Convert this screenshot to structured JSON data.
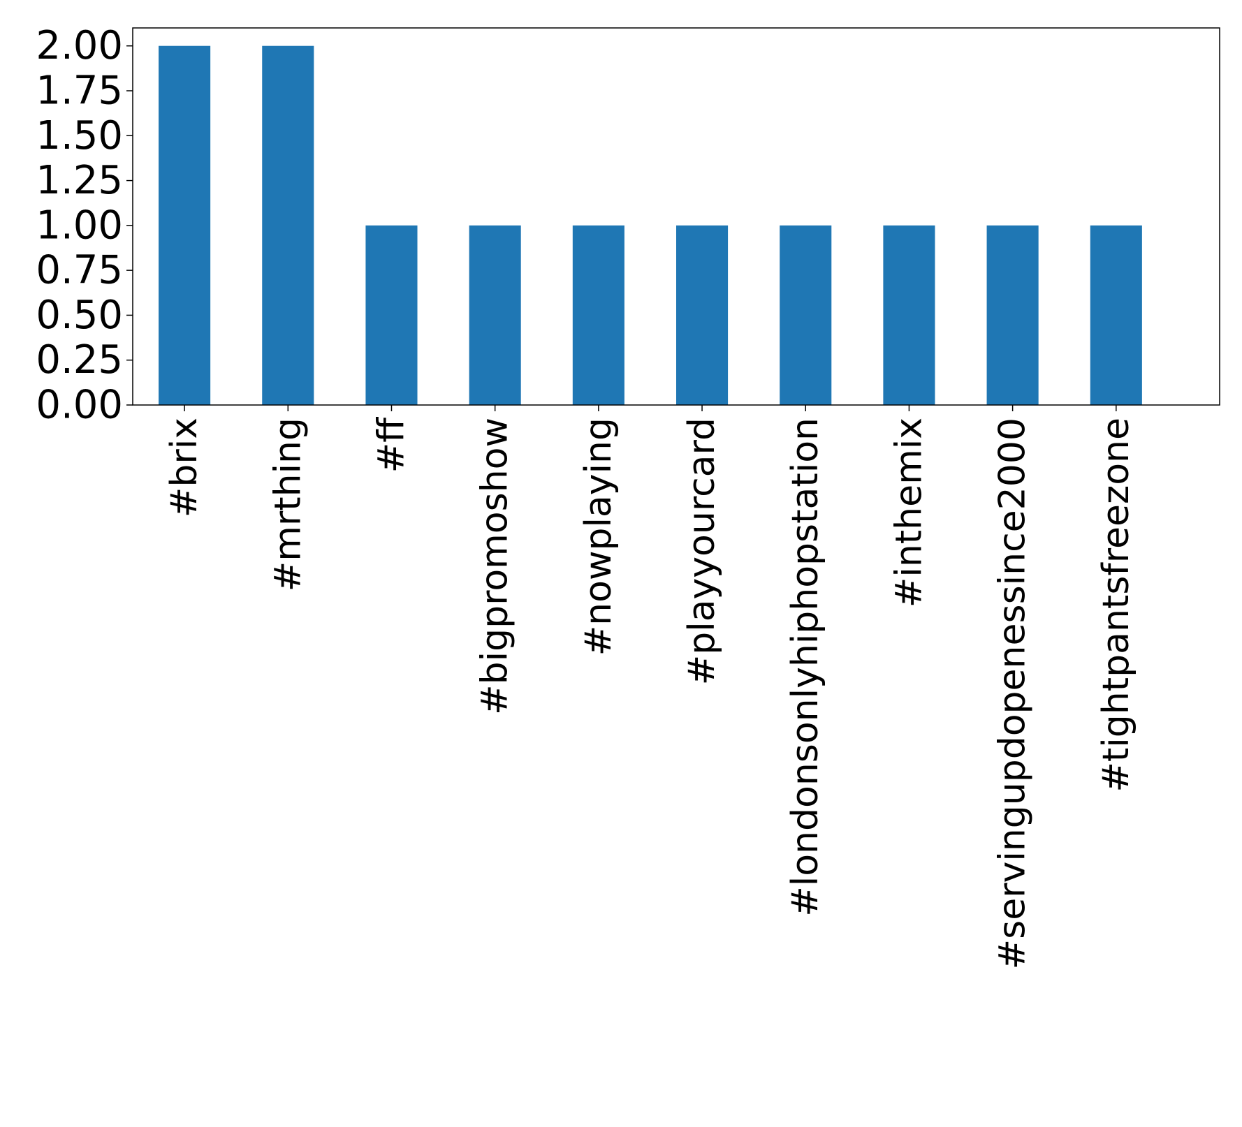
{
  "chart_data": {
    "type": "bar",
    "title": "",
    "xlabel": "",
    "ylabel": "",
    "categories": [
      "#brix",
      "#mrthing",
      "#ff",
      "#bigpromoshow",
      "#nowplaying",
      "#playyourcard",
      "#londonsonlyhiphopstation",
      "#inthemix",
      "#servingupdopenessince2000",
      "#tightpantsfreezone"
    ],
    "values": [
      2,
      2,
      1,
      1,
      1,
      1,
      1,
      1,
      1,
      1
    ],
    "ylim": [
      0,
      2.1
    ],
    "yticks": [
      "0.00",
      "0.25",
      "0.50",
      "0.75",
      "1.00",
      "1.25",
      "1.50",
      "1.75",
      "2.00"
    ],
    "bar_color": "#1f77b4",
    "grid": false,
    "legend": "none"
  }
}
